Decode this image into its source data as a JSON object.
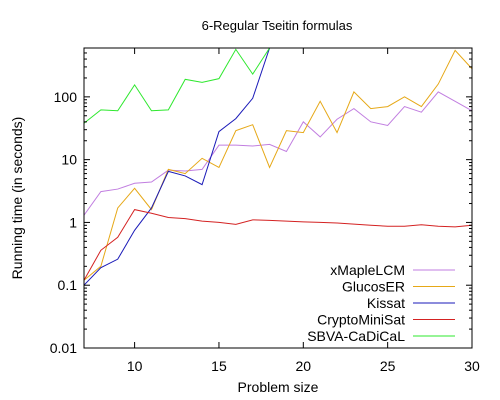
{
  "chart_data": {
    "type": "line",
    "title": "6-Regular Tseitin formulas",
    "xlabel": "Problem size",
    "ylabel": "Running time (in seconds)",
    "xlim": [
      7,
      30
    ],
    "ylim": [
      0.01,
      600
    ],
    "yscale": "log",
    "grid": false,
    "legend_position": "bottom-right",
    "xticks": [
      10,
      15,
      20,
      25,
      30
    ],
    "xtick_labels": [
      "10",
      "15",
      "20",
      "25",
      "30"
    ],
    "yticks": [
      0.01,
      0.1,
      1,
      10,
      100
    ],
    "ytick_labels": [
      "0.01",
      "0.1",
      "1",
      "10",
      "100"
    ],
    "series": [
      {
        "name": "xMapleLCM",
        "color": "#c17ee0",
        "x": [
          7,
          8,
          9,
          10,
          11,
          12,
          13,
          14,
          15,
          16,
          17,
          18,
          19,
          20,
          21,
          22,
          23,
          24,
          25,
          26,
          27,
          28,
          29,
          30
        ],
        "y": [
          1.3,
          3.1,
          3.4,
          4.2,
          4.4,
          6.8,
          6.6,
          7.0,
          17.0,
          17.0,
          16.5,
          17.5,
          13.5,
          40.0,
          23.0,
          44.0,
          65.0,
          40.0,
          35.0,
          70.0,
          57.0,
          120.0,
          85.0,
          60.0
        ]
      },
      {
        "name": "GlucosER",
        "color": "#e6a817",
        "x": [
          7,
          8,
          9,
          10,
          11,
          12,
          13,
          14,
          15,
          16,
          17,
          18,
          19,
          20,
          21,
          22,
          23,
          24,
          25,
          26,
          27,
          28,
          29,
          30
        ],
        "y": [
          0.12,
          0.2,
          1.7,
          3.5,
          1.6,
          7.0,
          6.0,
          10.5,
          7.5,
          29.0,
          36.0,
          7.5,
          29.0,
          27.0,
          85.0,
          27.0,
          120.0,
          65.0,
          70.0,
          100.0,
          70.0,
          160.0,
          550.0,
          280.0
        ]
      },
      {
        "name": "Kissat",
        "color": "#1a1ab8",
        "x": [
          7,
          8,
          9,
          10,
          11,
          12,
          13,
          14,
          15,
          16,
          17,
          18
        ],
        "y": [
          0.1,
          0.19,
          0.26,
          0.75,
          1.7,
          6.5,
          5.5,
          4.0,
          28.0,
          45.0,
          95.0,
          600.0
        ]
      },
      {
        "name": "CryptoMiniSat",
        "color": "#d42222",
        "x": [
          7,
          8,
          9,
          10,
          11,
          12,
          13,
          14,
          15,
          16,
          17,
          18,
          19,
          20,
          21,
          22,
          23,
          24,
          25,
          26,
          27,
          28,
          29,
          30
        ],
        "y": [
          0.12,
          0.36,
          0.58,
          1.6,
          1.4,
          1.2,
          1.15,
          1.05,
          1.0,
          0.93,
          1.1,
          1.08,
          1.05,
          1.02,
          1.0,
          0.98,
          0.94,
          0.9,
          0.87,
          0.87,
          0.92,
          0.87,
          0.85,
          0.9
        ]
      },
      {
        "name": "SBVA-CaDiCaL",
        "color": "#2ee82e",
        "x": [
          7,
          8,
          9,
          10,
          11,
          12,
          13,
          14,
          15,
          16,
          17,
          18
        ],
        "y": [
          38.0,
          62.0,
          60.0,
          155.0,
          60.0,
          62.0,
          190.0,
          170.0,
          195.0,
          570.0,
          230.0,
          600.0
        ]
      }
    ]
  }
}
